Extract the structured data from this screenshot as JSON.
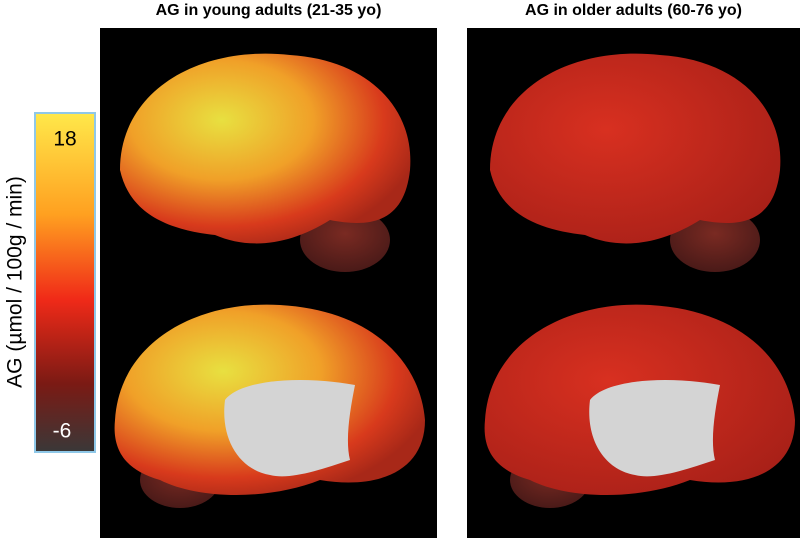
{
  "panels": [
    {
      "title": "AG in young adults (21-35 yo)"
    },
    {
      "title": "AG in older adults (60-76 yo)"
    }
  ],
  "colorbar": {
    "label": "AG (µmol / 100g / min)",
    "max": 18,
    "min": -6
  }
}
